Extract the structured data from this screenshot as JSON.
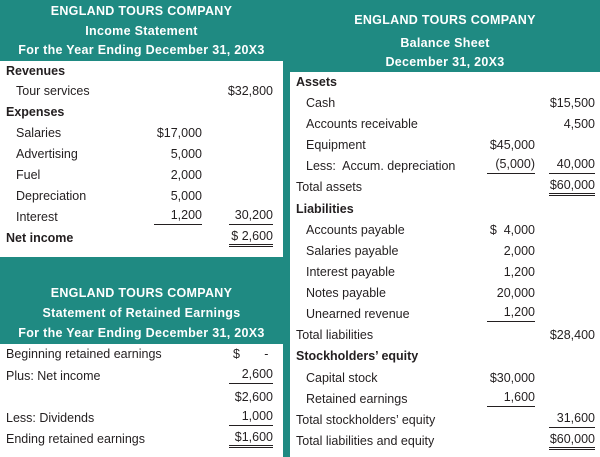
{
  "income": {
    "title": [
      "ENGLAND TOURS COMPANY",
      "Income Statement",
      "For the Year Ending December 31, 20X3"
    ],
    "revenues_label": "Revenues",
    "tour_services_label": "Tour services",
    "tour_services_value": "$32,800",
    "expenses_label": "Expenses",
    "expenses": [
      {
        "label": "Salaries",
        "value": "$17,000"
      },
      {
        "label": "Advertising",
        "value": "5,000"
      },
      {
        "label": "Fuel",
        "value": "2,000"
      },
      {
        "label": "Depreciation",
        "value": "5,000"
      },
      {
        "label": "Interest",
        "value": "1,200"
      }
    ],
    "total_expenses": "30,200",
    "net_income_label": "Net income",
    "net_income_value": "$ 2,600"
  },
  "retained": {
    "title": [
      "ENGLAND TOURS COMPANY",
      "Statement of Retained Earnings",
      "For the Year Ending December 31, 20X3"
    ],
    "rows": [
      {
        "label": "Beginning retained earnings",
        "value": "$       -"
      },
      {
        "label": "Plus: Net income",
        "value": "2,600"
      },
      {
        "label": "",
        "value": "$2,600"
      },
      {
        "label": "Less: Dividends",
        "value": "1,000"
      },
      {
        "label": "Ending retained earnings",
        "value": "$1,600"
      }
    ]
  },
  "balance": {
    "title": [
      "ENGLAND TOURS COMPANY",
      "Balance Sheet",
      "December 31, 20X3"
    ],
    "assets_label": "Assets",
    "cash_label": "Cash",
    "cash_value": "$15,500",
    "ar_label": "Accounts receivable",
    "ar_value": "4,500",
    "equipment_label": "Equipment",
    "equipment_value": "$45,000",
    "accum_label": "Less:  Accum. depreciation",
    "accum_value": "(5,000)",
    "net_equipment": "40,000",
    "total_assets_label": "Total assets",
    "total_assets_value": "$60,000",
    "liabilities_label": "Liabilities",
    "liabilities": [
      {
        "label": "Accounts payable",
        "value": "$  4,000"
      },
      {
        "label": "Salaries payable",
        "value": "2,000"
      },
      {
        "label": "Interest payable",
        "value": "1,200"
      },
      {
        "label": "Notes payable",
        "value": "20,000"
      },
      {
        "label": "Unearned revenue",
        "value": "1,200"
      }
    ],
    "total_liabilities_label": "Total liabilities",
    "total_liabilities_value": "$28,400",
    "equity_label": "Stockholders’ equity",
    "capital_label": "Capital stock",
    "capital_value": "$30,000",
    "re_label": "Retained earnings",
    "re_value": "1,600",
    "total_equity_label": "Total stockholders’ equity",
    "total_equity_value": "31,600",
    "total_le_label": "Total liabilities and equity",
    "total_le_value": "$60,000"
  },
  "colors": {
    "header": "#1f8a82",
    "text": "#231f20"
  }
}
